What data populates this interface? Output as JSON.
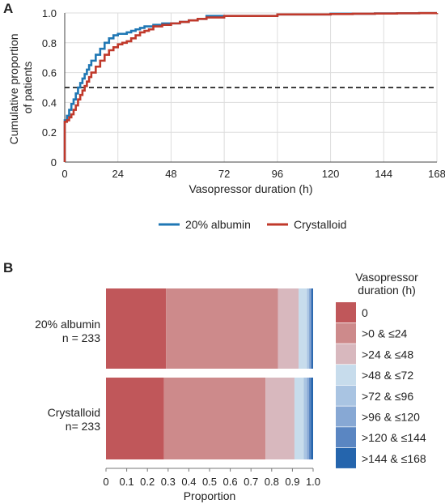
{
  "panel_a": {
    "label": "A"
  },
  "panel_b": {
    "label": "B"
  },
  "colors": {
    "albumin": "#1f77b4",
    "crystalloid": "#c0392b",
    "reference_line": "#222222",
    "grid": "#dddddd",
    "bins": [
      "#c0575a",
      "#cd8a8b",
      "#d8b8be",
      "#c7dcec",
      "#a9c4e2",
      "#87a8d4",
      "#5a86c2",
      "#2565ad"
    ]
  },
  "chart_data": [
    {
      "type": "line",
      "xlabel": "Vasopressor duration (h)",
      "ylabel": "Cumulative proportion of patients",
      "ylabel_lines": [
        "Cumulative proportion",
        "of patients"
      ],
      "xlim": [
        0,
        168
      ],
      "ylim": [
        0,
        1.0
      ],
      "xticks": [
        0,
        24,
        48,
        72,
        96,
        120,
        144,
        168
      ],
      "yticks": [
        0,
        0.2,
        0.4,
        0.6,
        0.8,
        1.0
      ],
      "ytick_labels": [
        "0",
        "0.2",
        "0.4",
        "0.6",
        "0.8",
        "1.0"
      ],
      "grid": true,
      "reference_line": {
        "y": 0.5,
        "style": "dashed"
      },
      "legend_position": "bottom",
      "series": [
        {
          "name": "20% albumin",
          "color": "#1f77b4",
          "x": [
            0,
            0,
            1,
            2,
            3,
            4,
            5,
            6,
            7,
            8,
            9,
            10,
            11,
            12,
            14,
            16,
            18,
            20,
            22,
            24,
            26,
            28,
            30,
            32,
            34,
            36,
            38,
            40,
            44,
            48,
            52,
            56,
            60,
            64,
            72,
            80,
            96,
            100,
            110,
            120,
            130,
            140,
            150,
            160,
            168
          ],
          "y": [
            0,
            0.28,
            0.31,
            0.35,
            0.39,
            0.42,
            0.46,
            0.5,
            0.53,
            0.56,
            0.59,
            0.62,
            0.65,
            0.68,
            0.72,
            0.76,
            0.8,
            0.83,
            0.85,
            0.86,
            0.86,
            0.87,
            0.88,
            0.89,
            0.9,
            0.91,
            0.91,
            0.92,
            0.93,
            0.93,
            0.94,
            0.95,
            0.96,
            0.98,
            0.98,
            0.98,
            0.99,
            0.99,
            0.99,
            0.995,
            0.995,
            0.997,
            0.998,
            0.999,
            1.0
          ]
        },
        {
          "name": "Crystalloid",
          "color": "#c0392b",
          "x": [
            0,
            0,
            1,
            2,
            3,
            4,
            5,
            6,
            7,
            8,
            9,
            10,
            11,
            12,
            14,
            16,
            18,
            20,
            22,
            24,
            26,
            28,
            30,
            32,
            34,
            36,
            38,
            40,
            44,
            48,
            52,
            56,
            60,
            64,
            72,
            80,
            96,
            100,
            110,
            120,
            130,
            140,
            150,
            160,
            168
          ],
          "y": [
            0,
            0.27,
            0.28,
            0.3,
            0.32,
            0.35,
            0.38,
            0.42,
            0.45,
            0.48,
            0.51,
            0.54,
            0.57,
            0.6,
            0.64,
            0.68,
            0.72,
            0.75,
            0.77,
            0.79,
            0.8,
            0.81,
            0.83,
            0.85,
            0.87,
            0.88,
            0.89,
            0.91,
            0.92,
            0.93,
            0.94,
            0.95,
            0.96,
            0.97,
            0.98,
            0.98,
            0.99,
            0.99,
            0.99,
            0.993,
            0.995,
            0.996,
            0.998,
            0.999,
            1.0
          ]
        }
      ]
    },
    {
      "type": "bar",
      "orientation": "horizontal",
      "stacked": true,
      "xlabel": "Proportion",
      "xlim": [
        0,
        1.0
      ],
      "xticks": [
        0,
        0.1,
        0.2,
        0.3,
        0.4,
        0.5,
        0.6,
        0.7,
        0.8,
        0.9,
        1.0
      ],
      "xtick_labels": [
        "0",
        "0.1",
        "0.2",
        "0.3",
        "0.4",
        "0.5",
        "0.6",
        "0.7",
        "0.8",
        "0.9",
        "1.0"
      ],
      "categories": [
        {
          "label": "20% albumin",
          "sublabel": "n = 233"
        },
        {
          "label": "Crystalloid",
          "sublabel": "n= 233"
        }
      ],
      "legend_title": [
        "Vasopressor",
        "duration (h)"
      ],
      "legend_position": "right",
      "series": [
        {
          "name": "0",
          "values": [
            0.29,
            0.28
          ]
        },
        {
          "name": ">0 & ≤24",
          "values": [
            0.54,
            0.49
          ]
        },
        {
          "name": ">24 & ≤48",
          "values": [
            0.1,
            0.14
          ]
        },
        {
          "name": ">48 & ≤72",
          "values": [
            0.04,
            0.045
          ]
        },
        {
          "name": ">72 & ≤96",
          "values": [
            0.01,
            0.015
          ]
        },
        {
          "name": ">96 & ≤120",
          "values": [
            0.008,
            0.01
          ]
        },
        {
          "name": ">120 & ≤144",
          "values": [
            0.006,
            0.01
          ]
        },
        {
          "name": ">144 & ≤168",
          "values": [
            0.006,
            0.01
          ]
        }
      ]
    }
  ]
}
